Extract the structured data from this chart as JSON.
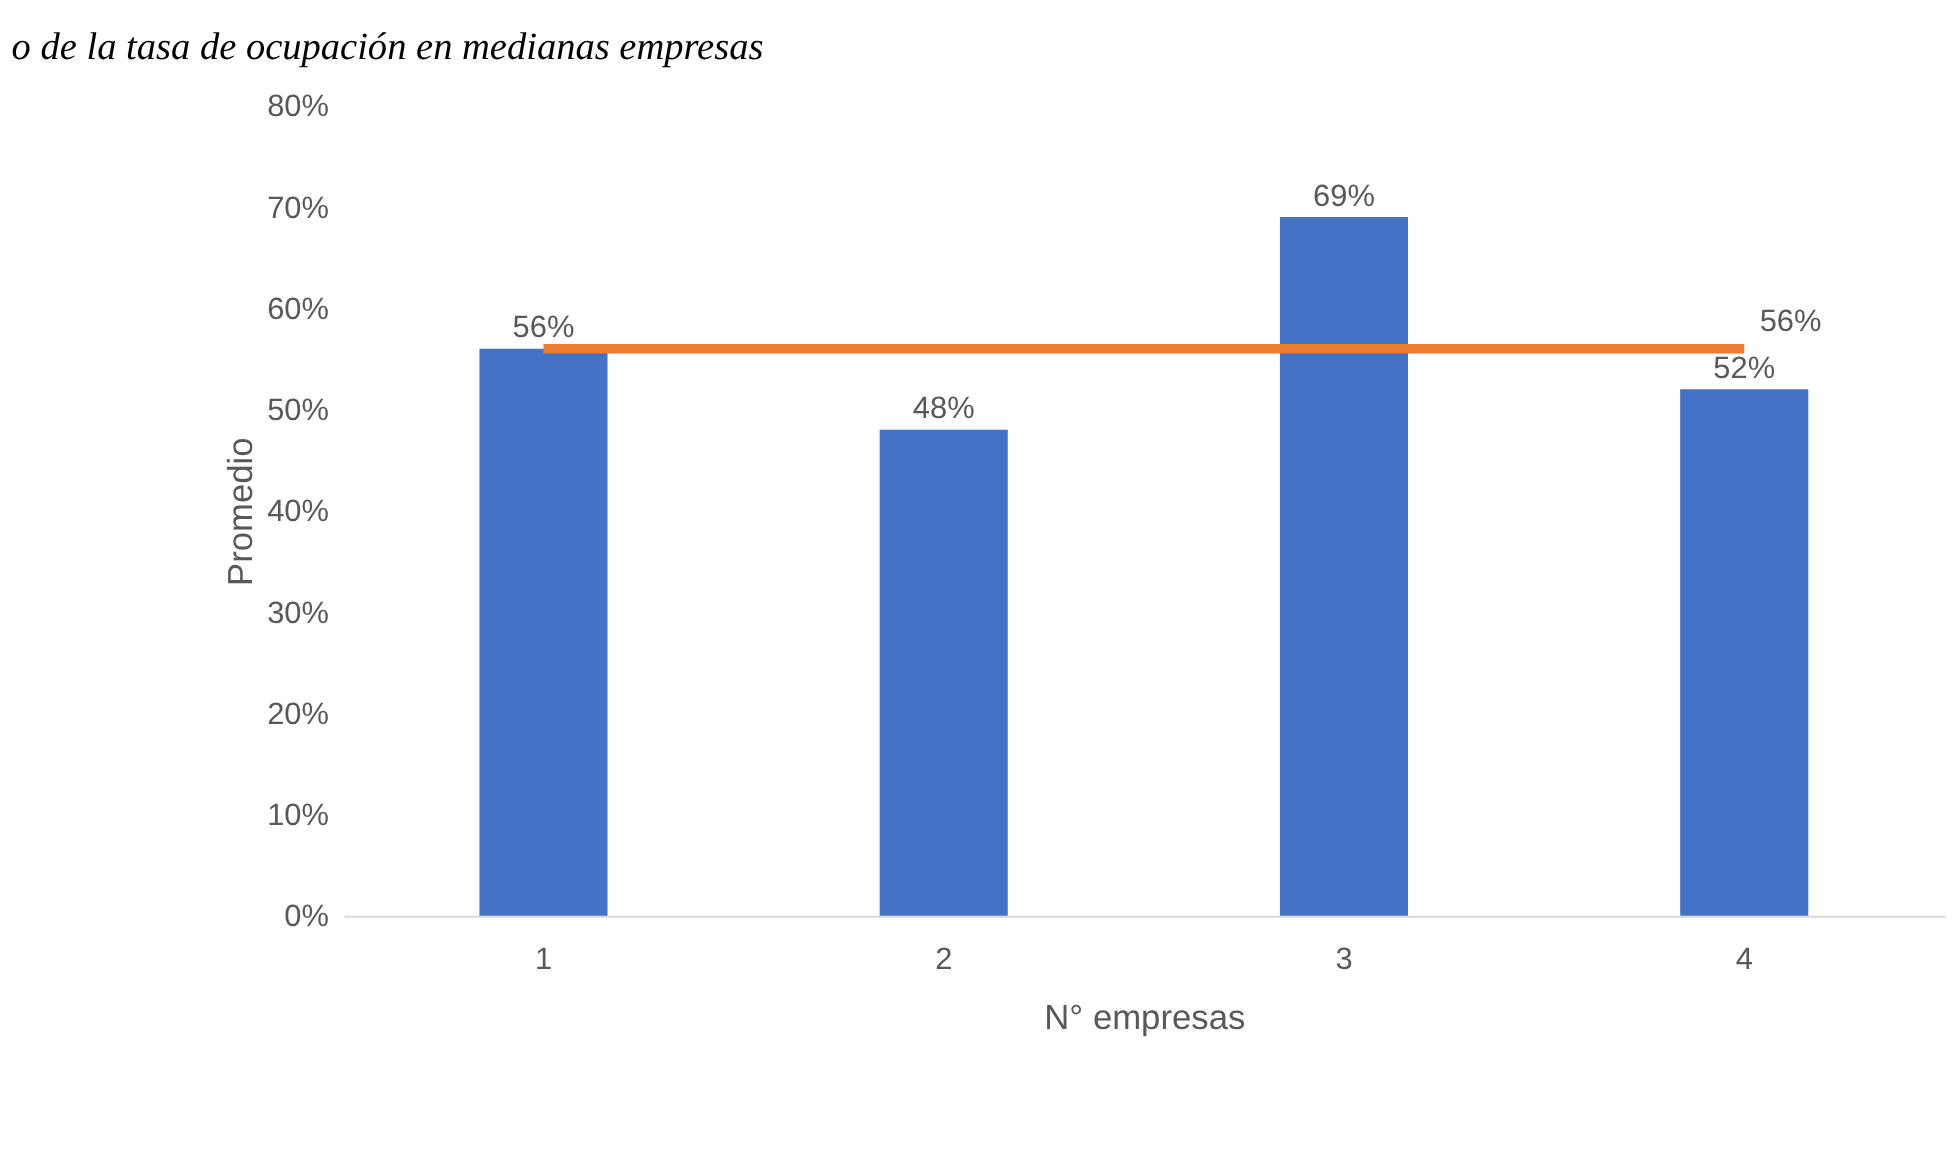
{
  "chart_data": {
    "type": "bar",
    "title": "o de la tasa de ocupación en medianas empresas",
    "xlabel": "N° empresas",
    "ylabel": "Promedio",
    "categories": [
      "1",
      "2",
      "3",
      "4"
    ],
    "series": [
      {
        "color": "#4472c4",
        "values": [
          56,
          48,
          69,
          52
        ],
        "value_labels": [
          "56%",
          "48%",
          "69%",
          "52%"
        ]
      },
      {
        "type": "line",
        "color": "#ed7d31",
        "values": [
          56,
          56,
          56,
          56
        ],
        "value_labels": [
          null,
          null,
          null,
          "56%"
        ]
      }
    ],
    "ylim": [
      0,
      80
    ],
    "yticks": [
      {
        "value": 0,
        "label": "0%"
      },
      {
        "value": 10,
        "label": "10%"
      },
      {
        "value": 20,
        "label": "20%"
      },
      {
        "value": 30,
        "label": "30%"
      },
      {
        "value": 40,
        "label": "40%"
      },
      {
        "value": 50,
        "label": "50%"
      },
      {
        "value": 60,
        "label": "60%"
      },
      {
        "value": 70,
        "label": "70%"
      },
      {
        "value": 80,
        "label": "80%"
      }
    ],
    "marker": "none",
    "line_style": "solid"
  }
}
